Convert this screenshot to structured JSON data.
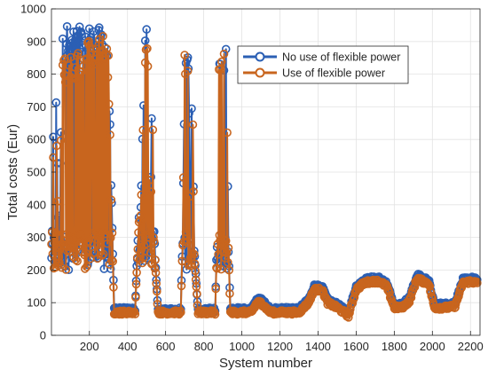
{
  "chart_data": {
    "type": "line",
    "title": "",
    "xlabel": "System number",
    "ylabel": "Total costs (Eur)",
    "xlim": [
      1,
      2250
    ],
    "ylim": [
      0,
      1000
    ],
    "x_ticks": [
      200,
      400,
      600,
      800,
      1000,
      1200,
      1400,
      1600,
      1800,
      2000,
      2200
    ],
    "y_ticks": [
      0,
      100,
      200,
      300,
      400,
      500,
      600,
      700,
      800,
      900,
      1000
    ],
    "grid": true,
    "legend_position": "top-right",
    "colors": {
      "no_flex": "#2b5fb4",
      "flex": "#c8651e",
      "background": "#ffffff",
      "grid": "#e3e3e3"
    },
    "series": [
      {
        "name": "No use of flexible power",
        "approx_points": [
          [
            1,
            330
          ],
          [
            20,
            900
          ],
          [
            40,
            300
          ],
          [
            60,
            920
          ],
          [
            80,
            950
          ],
          [
            100,
            960
          ],
          [
            120,
            930
          ],
          [
            140,
            960
          ],
          [
            160,
            940
          ],
          [
            180,
            960
          ],
          [
            200,
            970
          ],
          [
            220,
            940
          ],
          [
            240,
            950
          ],
          [
            260,
            940
          ],
          [
            280,
            930
          ],
          [
            300,
            890
          ],
          [
            320,
            330
          ],
          [
            330,
            80
          ],
          [
            440,
            80
          ],
          [
            460,
            390
          ],
          [
            470,
            400
          ],
          [
            490,
            930
          ],
          [
            500,
            940
          ],
          [
            510,
            950
          ],
          [
            520,
            310
          ],
          [
            530,
            940
          ],
          [
            540,
            300
          ],
          [
            560,
            75
          ],
          [
            680,
            80
          ],
          [
            690,
            330
          ],
          [
            700,
            890
          ],
          [
            710,
            910
          ],
          [
            720,
            900
          ],
          [
            730,
            260
          ],
          [
            740,
            920
          ],
          [
            750,
            270
          ],
          [
            770,
            75
          ],
          [
            860,
            80
          ],
          [
            870,
            300
          ],
          [
            880,
            880
          ],
          [
            900,
            895
          ],
          [
            910,
            900
          ],
          [
            920,
            900
          ],
          [
            930,
            280
          ],
          [
            940,
            80
          ],
          [
            1050,
            80
          ],
          [
            1080,
            110
          ],
          [
            1100,
            110
          ],
          [
            1150,
            80
          ],
          [
            1300,
            80
          ],
          [
            1350,
            110
          ],
          [
            1380,
            150
          ],
          [
            1420,
            150
          ],
          [
            1450,
            110
          ],
          [
            1500,
            95
          ],
          [
            1560,
            70
          ],
          [
            1600,
            150
          ],
          [
            1640,
            170
          ],
          [
            1680,
            175
          ],
          [
            1720,
            175
          ],
          [
            1760,
            160
          ],
          [
            1800,
            95
          ],
          [
            1840,
            95
          ],
          [
            1880,
            115
          ],
          [
            1920,
            185
          ],
          [
            1950,
            175
          ],
          [
            1980,
            170
          ],
          [
            2010,
            95
          ],
          [
            2080,
            95
          ],
          [
            2120,
            100
          ],
          [
            2160,
            170
          ],
          [
            2200,
            175
          ],
          [
            2235,
            170
          ]
        ]
      },
      {
        "name": "Use of flexible power",
        "approx_points": [
          [
            1,
            290
          ],
          [
            20,
            870
          ],
          [
            40,
            260
          ],
          [
            60,
            880
          ],
          [
            80,
            850
          ],
          [
            100,
            860
          ],
          [
            120,
            850
          ],
          [
            140,
            870
          ],
          [
            160,
            880
          ],
          [
            180,
            940
          ],
          [
            200,
            930
          ],
          [
            220,
            880
          ],
          [
            240,
            930
          ],
          [
            260,
            920
          ],
          [
            280,
            920
          ],
          [
            300,
            860
          ],
          [
            320,
            300
          ],
          [
            330,
            70
          ],
          [
            440,
            70
          ],
          [
            460,
            360
          ],
          [
            470,
            370
          ],
          [
            490,
            880
          ],
          [
            500,
            890
          ],
          [
            510,
            900
          ],
          [
            520,
            280
          ],
          [
            530,
            900
          ],
          [
            540,
            290
          ],
          [
            560,
            70
          ],
          [
            680,
            70
          ],
          [
            690,
            300
          ],
          [
            700,
            860
          ],
          [
            710,
            870
          ],
          [
            720,
            870
          ],
          [
            730,
            240
          ],
          [
            740,
            880
          ],
          [
            750,
            250
          ],
          [
            770,
            70
          ],
          [
            860,
            70
          ],
          [
            870,
            280
          ],
          [
            880,
            850
          ],
          [
            900,
            870
          ],
          [
            910,
            870
          ],
          [
            920,
            880
          ],
          [
            930,
            260
          ],
          [
            940,
            70
          ],
          [
            1050,
            70
          ],
          [
            1080,
            100
          ],
          [
            1100,
            100
          ],
          [
            1150,
            70
          ],
          [
            1300,
            70
          ],
          [
            1350,
            100
          ],
          [
            1380,
            140
          ],
          [
            1420,
            140
          ],
          [
            1450,
            100
          ],
          [
            1500,
            85
          ],
          [
            1560,
            60
          ],
          [
            1600,
            140
          ],
          [
            1640,
            160
          ],
          [
            1680,
            165
          ],
          [
            1720,
            165
          ],
          [
            1760,
            150
          ],
          [
            1800,
            85
          ],
          [
            1840,
            85
          ],
          [
            1880,
            105
          ],
          [
            1920,
            175
          ],
          [
            1950,
            165
          ],
          [
            1980,
            160
          ],
          [
            2010,
            85
          ],
          [
            2080,
            85
          ],
          [
            2120,
            90
          ],
          [
            2160,
            160
          ],
          [
            2200,
            165
          ],
          [
            2235,
            160
          ]
        ]
      }
    ]
  }
}
